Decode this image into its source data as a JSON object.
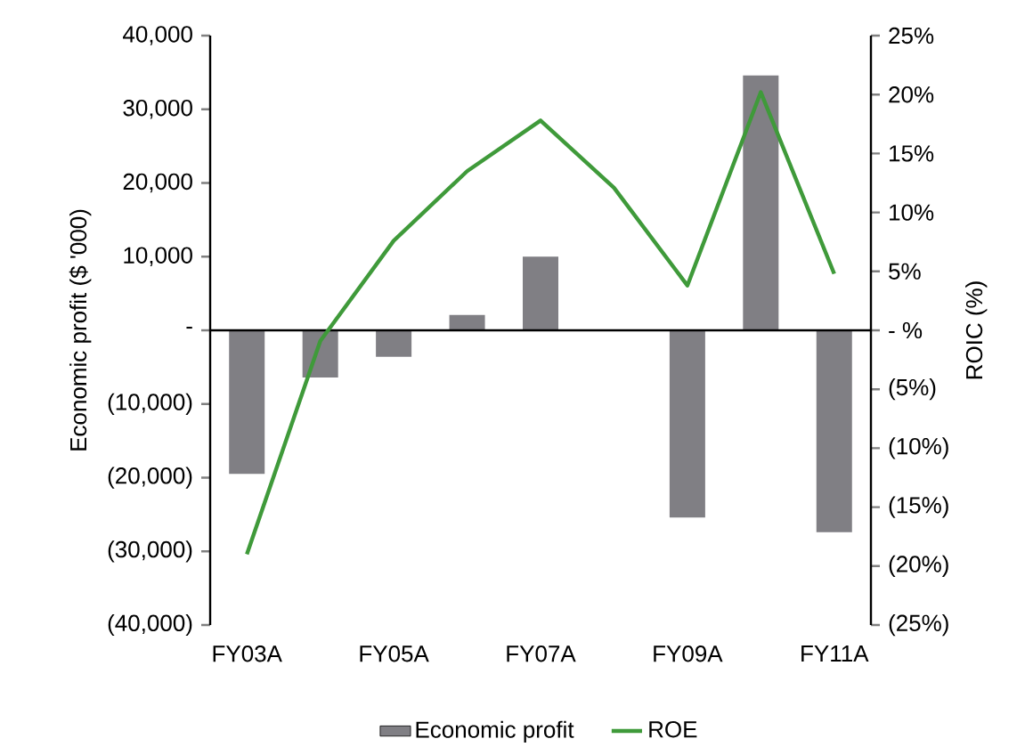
{
  "chart_data": {
    "type": "bar",
    "categories": [
      "FY03A",
      null,
      "FY05A",
      null,
      "FY07A",
      null,
      "FY09A",
      null,
      "FY11A"
    ],
    "series": [
      {
        "name": "Economic profit",
        "color": "#807f84",
        "values": [
          -19500,
          -6400,
          -3600,
          2100,
          10000,
          0,
          -25400,
          34600,
          -27400
        ]
      },
      {
        "name": "ROE",
        "type": "line",
        "axis": "y2",
        "color": "#3f9a3a",
        "values": [
          -19.0,
          -0.9,
          7.6,
          13.5,
          17.8,
          12.1,
          3.8,
          20.2,
          4.8
        ]
      }
    ],
    "ylabel": "Economic profit ($ '000)",
    "y2label": "ROIC (%)",
    "ylim": [
      -40000,
      40000
    ],
    "yticks": [
      {
        "value": -40000,
        "label": "(40,000)"
      },
      {
        "value": -30000,
        "label": "(30,000)"
      },
      {
        "value": -20000,
        "label": "(20,000)"
      },
      {
        "value": -10000,
        "label": "(10,000)"
      },
      {
        "value": 0,
        "label": "-"
      },
      {
        "value": 10000,
        "label": "10,000"
      },
      {
        "value": 20000,
        "label": "20,000"
      },
      {
        "value": 30000,
        "label": "30,000"
      },
      {
        "value": 40000,
        "label": "40,000"
      }
    ],
    "y2lim": [
      -25,
      25
    ],
    "y2ticks": [
      {
        "value": -25,
        "label": "(25%)"
      },
      {
        "value": -20,
        "label": "(20%)"
      },
      {
        "value": -15,
        "label": "(15%)"
      },
      {
        "value": -10,
        "label": "(10%)"
      },
      {
        "value": -5,
        "label": "(5%)"
      },
      {
        "value": 0,
        "label": "- %"
      },
      {
        "value": 5,
        "label": "5%"
      },
      {
        "value": 10,
        "label": "10%"
      },
      {
        "value": 15,
        "label": "15%"
      },
      {
        "value": 20,
        "label": "20%"
      },
      {
        "value": 25,
        "label": "25%"
      }
    ],
    "legend": "bottom"
  }
}
